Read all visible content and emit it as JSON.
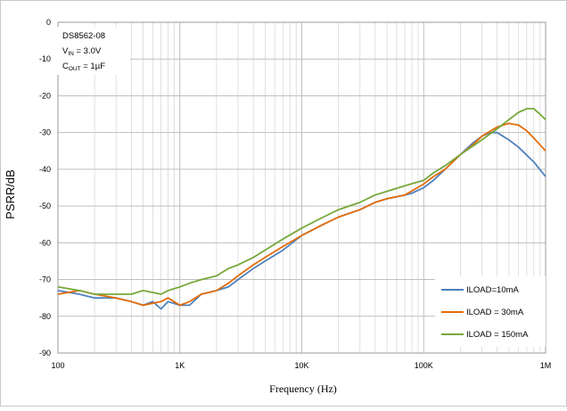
{
  "chart_data": {
    "type": "line",
    "ylabel": "PSRR/dB",
    "xlabel": "Frequency (Hz)",
    "x_scale": "log",
    "xlim": [
      100,
      1000000
    ],
    "ylim": [
      -90,
      0
    ],
    "grid": true,
    "legend_position": "bottom-right",
    "annotation": {
      "line1": "DS8562-08",
      "line2_main": "V",
      "line2_sub": "IN",
      "line2_rest": " = 3.0V",
      "line3_main": "C",
      "line3_sub": "OUT",
      "line3_rest": " = 1µF"
    },
    "x_ticks": [
      {
        "value": 100,
        "label": "100"
      },
      {
        "value": 1000,
        "label": "1K"
      },
      {
        "value": 10000,
        "label": "10K"
      },
      {
        "value": 100000,
        "label": "100K"
      },
      {
        "value": 1000000,
        "label": "1M"
      }
    ],
    "y_ticks": [
      {
        "value": 0,
        "label": "0"
      },
      {
        "value": -10,
        "label": "-10"
      },
      {
        "value": -20,
        "label": "-20"
      },
      {
        "value": -30,
        "label": "-30"
      },
      {
        "value": -40,
        "label": "-40"
      },
      {
        "value": -50,
        "label": "-50"
      },
      {
        "value": -60,
        "label": "-60"
      },
      {
        "value": -70,
        "label": "-70"
      },
      {
        "value": -80,
        "label": "-80"
      },
      {
        "value": -90,
        "label": "-90"
      }
    ],
    "series": [
      {
        "name": "ILOAD=10mA",
        "color": "#4f81bd",
        "points": [
          [
            100,
            -73
          ],
          [
            150,
            -74
          ],
          [
            200,
            -75
          ],
          [
            300,
            -75
          ],
          [
            400,
            -76
          ],
          [
            500,
            -77
          ],
          [
            600,
            -76
          ],
          [
            700,
            -78
          ],
          [
            800,
            -76
          ],
          [
            1000,
            -77
          ],
          [
            1200,
            -77
          ],
          [
            1500,
            -74
          ],
          [
            2000,
            -73
          ],
          [
            2500,
            -72
          ],
          [
            3000,
            -70
          ],
          [
            4000,
            -67
          ],
          [
            5000,
            -65
          ],
          [
            7000,
            -62
          ],
          [
            10000,
            -58
          ],
          [
            15000,
            -55
          ],
          [
            20000,
            -53
          ],
          [
            30000,
            -51
          ],
          [
            40000,
            -49
          ],
          [
            50000,
            -48
          ],
          [
            60000,
            -47.5
          ],
          [
            70000,
            -47
          ],
          [
            80000,
            -46.5
          ],
          [
            100000,
            -45
          ],
          [
            120000,
            -43
          ],
          [
            150000,
            -40
          ],
          [
            200000,
            -36
          ],
          [
            250000,
            -33
          ],
          [
            300000,
            -31
          ],
          [
            350000,
            -30
          ],
          [
            400000,
            -30
          ],
          [
            500000,
            -32
          ],
          [
            600000,
            -34
          ],
          [
            800000,
            -38
          ],
          [
            1000000,
            -42
          ]
        ]
      },
      {
        "name": "ILOAD = 30mA",
        "color": "#e36c0a",
        "points": [
          [
            100,
            -74
          ],
          [
            150,
            -73
          ],
          [
            200,
            -74
          ],
          [
            300,
            -75
          ],
          [
            400,
            -76
          ],
          [
            500,
            -77
          ],
          [
            700,
            -76
          ],
          [
            800,
            -75
          ],
          [
            1000,
            -77
          ],
          [
            1200,
            -76
          ],
          [
            1500,
            -74
          ],
          [
            2000,
            -73
          ],
          [
            2500,
            -71
          ],
          [
            3000,
            -69
          ],
          [
            4000,
            -66
          ],
          [
            5000,
            -64
          ],
          [
            7000,
            -61
          ],
          [
            10000,
            -58
          ],
          [
            15000,
            -55
          ],
          [
            20000,
            -53
          ],
          [
            30000,
            -51
          ],
          [
            40000,
            -49
          ],
          [
            50000,
            -48
          ],
          [
            70000,
            -47
          ],
          [
            100000,
            -44
          ],
          [
            120000,
            -42
          ],
          [
            150000,
            -40
          ],
          [
            200000,
            -36
          ],
          [
            250000,
            -33.5
          ],
          [
            300000,
            -31
          ],
          [
            400000,
            -28.5
          ],
          [
            500000,
            -27.5
          ],
          [
            600000,
            -28
          ],
          [
            700000,
            -29.5
          ],
          [
            800000,
            -31.5
          ],
          [
            1000000,
            -35
          ]
        ]
      },
      {
        "name": "ILOAD = 150mA",
        "color": "#77a83b",
        "points": [
          [
            100,
            -72
          ],
          [
            150,
            -73
          ],
          [
            200,
            -74
          ],
          [
            300,
            -74
          ],
          [
            400,
            -74
          ],
          [
            500,
            -73
          ],
          [
            700,
            -74
          ],
          [
            800,
            -73
          ],
          [
            1000,
            -72
          ],
          [
            1200,
            -71
          ],
          [
            1500,
            -70
          ],
          [
            2000,
            -69
          ],
          [
            2500,
            -67
          ],
          [
            3000,
            -66
          ],
          [
            4000,
            -64
          ],
          [
            5000,
            -62
          ],
          [
            7000,
            -59
          ],
          [
            10000,
            -56
          ],
          [
            15000,
            -53
          ],
          [
            20000,
            -51
          ],
          [
            30000,
            -49
          ],
          [
            40000,
            -47
          ],
          [
            50000,
            -46
          ],
          [
            70000,
            -44.5
          ],
          [
            100000,
            -43
          ],
          [
            120000,
            -41
          ],
          [
            150000,
            -39
          ],
          [
            200000,
            -36
          ],
          [
            300000,
            -32
          ],
          [
            400000,
            -29
          ],
          [
            500000,
            -26.5
          ],
          [
            600000,
            -24.5
          ],
          [
            700000,
            -23.5
          ],
          [
            800000,
            -23.5
          ],
          [
            900000,
            -25
          ],
          [
            1000000,
            -26.5
          ]
        ]
      }
    ]
  }
}
